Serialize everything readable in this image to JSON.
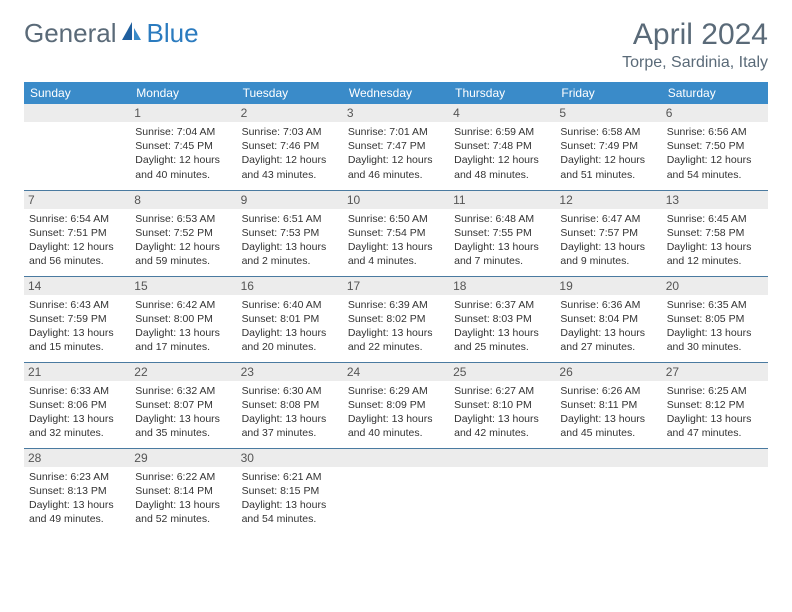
{
  "brand": {
    "general": "General",
    "blue": "Blue"
  },
  "title": "April 2024",
  "location": "Torpe, Sardinia, Italy",
  "colors": {
    "header_bg": "#3a8bc9",
    "header_text": "#ffffff",
    "brand_gray": "#5a6a78",
    "brand_blue": "#2b7bbf",
    "daynum_bg": "#ececec",
    "border": "#4a7aa0",
    "text": "#333333",
    "background": "#ffffff"
  },
  "weekdays": [
    "Sunday",
    "Monday",
    "Tuesday",
    "Wednesday",
    "Thursday",
    "Friday",
    "Saturday"
  ],
  "weeks": [
    [
      {
        "day": "",
        "sunrise": "",
        "sunset": "",
        "daylight1": "",
        "daylight2": ""
      },
      {
        "day": "1",
        "sunrise": "Sunrise: 7:04 AM",
        "sunset": "Sunset: 7:45 PM",
        "daylight1": "Daylight: 12 hours",
        "daylight2": "and 40 minutes."
      },
      {
        "day": "2",
        "sunrise": "Sunrise: 7:03 AM",
        "sunset": "Sunset: 7:46 PM",
        "daylight1": "Daylight: 12 hours",
        "daylight2": "and 43 minutes."
      },
      {
        "day": "3",
        "sunrise": "Sunrise: 7:01 AM",
        "sunset": "Sunset: 7:47 PM",
        "daylight1": "Daylight: 12 hours",
        "daylight2": "and 46 minutes."
      },
      {
        "day": "4",
        "sunrise": "Sunrise: 6:59 AM",
        "sunset": "Sunset: 7:48 PM",
        "daylight1": "Daylight: 12 hours",
        "daylight2": "and 48 minutes."
      },
      {
        "day": "5",
        "sunrise": "Sunrise: 6:58 AM",
        "sunset": "Sunset: 7:49 PM",
        "daylight1": "Daylight: 12 hours",
        "daylight2": "and 51 minutes."
      },
      {
        "day": "6",
        "sunrise": "Sunrise: 6:56 AM",
        "sunset": "Sunset: 7:50 PM",
        "daylight1": "Daylight: 12 hours",
        "daylight2": "and 54 minutes."
      }
    ],
    [
      {
        "day": "7",
        "sunrise": "Sunrise: 6:54 AM",
        "sunset": "Sunset: 7:51 PM",
        "daylight1": "Daylight: 12 hours",
        "daylight2": "and 56 minutes."
      },
      {
        "day": "8",
        "sunrise": "Sunrise: 6:53 AM",
        "sunset": "Sunset: 7:52 PM",
        "daylight1": "Daylight: 12 hours",
        "daylight2": "and 59 minutes."
      },
      {
        "day": "9",
        "sunrise": "Sunrise: 6:51 AM",
        "sunset": "Sunset: 7:53 PM",
        "daylight1": "Daylight: 13 hours",
        "daylight2": "and 2 minutes."
      },
      {
        "day": "10",
        "sunrise": "Sunrise: 6:50 AM",
        "sunset": "Sunset: 7:54 PM",
        "daylight1": "Daylight: 13 hours",
        "daylight2": "and 4 minutes."
      },
      {
        "day": "11",
        "sunrise": "Sunrise: 6:48 AM",
        "sunset": "Sunset: 7:55 PM",
        "daylight1": "Daylight: 13 hours",
        "daylight2": "and 7 minutes."
      },
      {
        "day": "12",
        "sunrise": "Sunrise: 6:47 AM",
        "sunset": "Sunset: 7:57 PM",
        "daylight1": "Daylight: 13 hours",
        "daylight2": "and 9 minutes."
      },
      {
        "day": "13",
        "sunrise": "Sunrise: 6:45 AM",
        "sunset": "Sunset: 7:58 PM",
        "daylight1": "Daylight: 13 hours",
        "daylight2": "and 12 minutes."
      }
    ],
    [
      {
        "day": "14",
        "sunrise": "Sunrise: 6:43 AM",
        "sunset": "Sunset: 7:59 PM",
        "daylight1": "Daylight: 13 hours",
        "daylight2": "and 15 minutes."
      },
      {
        "day": "15",
        "sunrise": "Sunrise: 6:42 AM",
        "sunset": "Sunset: 8:00 PM",
        "daylight1": "Daylight: 13 hours",
        "daylight2": "and 17 minutes."
      },
      {
        "day": "16",
        "sunrise": "Sunrise: 6:40 AM",
        "sunset": "Sunset: 8:01 PM",
        "daylight1": "Daylight: 13 hours",
        "daylight2": "and 20 minutes."
      },
      {
        "day": "17",
        "sunrise": "Sunrise: 6:39 AM",
        "sunset": "Sunset: 8:02 PM",
        "daylight1": "Daylight: 13 hours",
        "daylight2": "and 22 minutes."
      },
      {
        "day": "18",
        "sunrise": "Sunrise: 6:37 AM",
        "sunset": "Sunset: 8:03 PM",
        "daylight1": "Daylight: 13 hours",
        "daylight2": "and 25 minutes."
      },
      {
        "day": "19",
        "sunrise": "Sunrise: 6:36 AM",
        "sunset": "Sunset: 8:04 PM",
        "daylight1": "Daylight: 13 hours",
        "daylight2": "and 27 minutes."
      },
      {
        "day": "20",
        "sunrise": "Sunrise: 6:35 AM",
        "sunset": "Sunset: 8:05 PM",
        "daylight1": "Daylight: 13 hours",
        "daylight2": "and 30 minutes."
      }
    ],
    [
      {
        "day": "21",
        "sunrise": "Sunrise: 6:33 AM",
        "sunset": "Sunset: 8:06 PM",
        "daylight1": "Daylight: 13 hours",
        "daylight2": "and 32 minutes."
      },
      {
        "day": "22",
        "sunrise": "Sunrise: 6:32 AM",
        "sunset": "Sunset: 8:07 PM",
        "daylight1": "Daylight: 13 hours",
        "daylight2": "and 35 minutes."
      },
      {
        "day": "23",
        "sunrise": "Sunrise: 6:30 AM",
        "sunset": "Sunset: 8:08 PM",
        "daylight1": "Daylight: 13 hours",
        "daylight2": "and 37 minutes."
      },
      {
        "day": "24",
        "sunrise": "Sunrise: 6:29 AM",
        "sunset": "Sunset: 8:09 PM",
        "daylight1": "Daylight: 13 hours",
        "daylight2": "and 40 minutes."
      },
      {
        "day": "25",
        "sunrise": "Sunrise: 6:27 AM",
        "sunset": "Sunset: 8:10 PM",
        "daylight1": "Daylight: 13 hours",
        "daylight2": "and 42 minutes."
      },
      {
        "day": "26",
        "sunrise": "Sunrise: 6:26 AM",
        "sunset": "Sunset: 8:11 PM",
        "daylight1": "Daylight: 13 hours",
        "daylight2": "and 45 minutes."
      },
      {
        "day": "27",
        "sunrise": "Sunrise: 6:25 AM",
        "sunset": "Sunset: 8:12 PM",
        "daylight1": "Daylight: 13 hours",
        "daylight2": "and 47 minutes."
      }
    ],
    [
      {
        "day": "28",
        "sunrise": "Sunrise: 6:23 AM",
        "sunset": "Sunset: 8:13 PM",
        "daylight1": "Daylight: 13 hours",
        "daylight2": "and 49 minutes."
      },
      {
        "day": "29",
        "sunrise": "Sunrise: 6:22 AM",
        "sunset": "Sunset: 8:14 PM",
        "daylight1": "Daylight: 13 hours",
        "daylight2": "and 52 minutes."
      },
      {
        "day": "30",
        "sunrise": "Sunrise: 6:21 AM",
        "sunset": "Sunset: 8:15 PM",
        "daylight1": "Daylight: 13 hours",
        "daylight2": "and 54 minutes."
      },
      {
        "day": "",
        "sunrise": "",
        "sunset": "",
        "daylight1": "",
        "daylight2": ""
      },
      {
        "day": "",
        "sunrise": "",
        "sunset": "",
        "daylight1": "",
        "daylight2": ""
      },
      {
        "day": "",
        "sunrise": "",
        "sunset": "",
        "daylight1": "",
        "daylight2": ""
      },
      {
        "day": "",
        "sunrise": "",
        "sunset": "",
        "daylight1": "",
        "daylight2": ""
      }
    ]
  ]
}
